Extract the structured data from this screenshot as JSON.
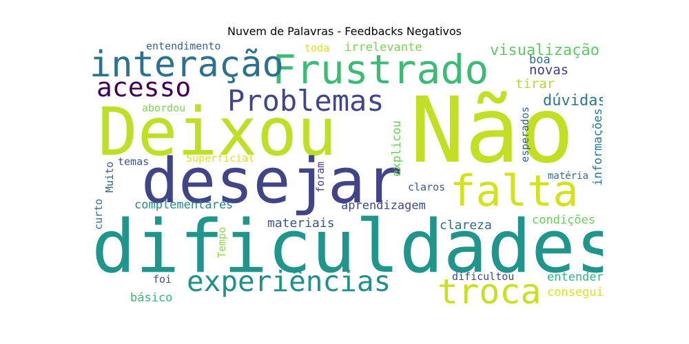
{
  "title": "Nuvem de Palavras - Feedbacks Negativos",
  "words": [
    {
      "text": "Não",
      "color": "#c2df23"
    },
    {
      "text": "Deixou",
      "color": "#bddf26"
    },
    {
      "text": "dificuldades",
      "color": "#1f958b"
    },
    {
      "text": "desejar",
      "color": "#414487"
    },
    {
      "text": "Frustrado",
      "color": "#3bbb75"
    },
    {
      "text": "interação",
      "color": "#2c728e"
    },
    {
      "text": "acesso",
      "color": "#440154"
    },
    {
      "text": "Problemas",
      "color": "#3f4788"
    },
    {
      "text": "falta",
      "color": "#d2e21b"
    },
    {
      "text": "experiências",
      "color": "#21908d"
    },
    {
      "text": "troca",
      "color": "#c8e020"
    },
    {
      "text": "visualização",
      "color": "#5ec962"
    },
    {
      "text": "dúvidas",
      "color": "#2a788e"
    },
    {
      "text": "tirar",
      "color": "#addc30"
    },
    {
      "text": "boa",
      "color": "#31688e"
    },
    {
      "text": "novas",
      "color": "#443a83"
    },
    {
      "text": "irrelevante",
      "color": "#7ad151"
    },
    {
      "text": "toda",
      "color": "#d8e219"
    },
    {
      "text": "entendimento",
      "color": "#33638d"
    },
    {
      "text": "abordou",
      "color": "#7fd34e"
    },
    {
      "text": "esperados",
      "color": "#355f8d"
    },
    {
      "text": "informações",
      "color": "#2a788e"
    },
    {
      "text": "matéria",
      "color": "#2d708e"
    },
    {
      "text": "explicou",
      "color": "#6ece58"
    },
    {
      "text": "foram",
      "color": "#433e85"
    },
    {
      "text": "claros",
      "color": "#38598c"
    },
    {
      "text": "Superficial",
      "color": "#dde318"
    },
    {
      "text": "temas",
      "color": "#3b528b"
    },
    {
      "text": "Muito",
      "color": "#33638d"
    },
    {
      "text": "curto",
      "color": "#2c728e"
    },
    {
      "text": "complementares",
      "color": "#25858e"
    },
    {
      "text": "aprendizagem",
      "color": "#3e4989"
    },
    {
      "text": "materiais",
      "color": "#39568c"
    },
    {
      "text": "clareza",
      "color": "#31688e"
    },
    {
      "text": "condições",
      "color": "#6ccd5a"
    },
    {
      "text": "Tempo",
      "color": "#8fd744"
    },
    {
      "text": "foi",
      "color": "#3b528b"
    },
    {
      "text": "básico",
      "color": "#35b779"
    },
    {
      "text": "dificultou",
      "color": "#3e4989"
    },
    {
      "text": "entender",
      "color": "#2fb47c"
    },
    {
      "text": "consegui",
      "color": "#d8e219"
    }
  ]
}
